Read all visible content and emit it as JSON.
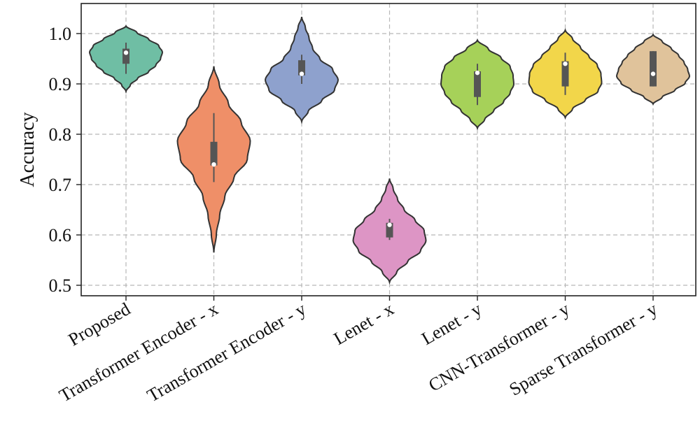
{
  "chart_data": {
    "type": "violin",
    "ylabel": "Accuracy",
    "xlabel": "",
    "ylim": [
      0.48,
      1.06
    ],
    "yticks": [
      "0.5",
      "0.6",
      "0.7",
      "0.8",
      "0.9",
      "1.0"
    ],
    "grid": true,
    "legend": "none",
    "categories": [
      {
        "name": "Proposed",
        "color": "#6fbea4",
        "range": [
          0.885,
          1.015
        ],
        "profile": [
          0.0,
          0.12,
          0.32,
          0.62,
          0.82,
          0.95,
          1.0,
          0.9,
          0.62,
          0.3,
          0.0
        ],
        "q1": 0.94,
        "median": 0.962,
        "q3": 0.97,
        "whisker": [
          0.92,
          0.982
        ]
      },
      {
        "name": "Transformer Encoder - x",
        "color": "#ef8f68",
        "range": [
          0.565,
          0.935
        ],
        "profile": [
          0.0,
          0.07,
          0.16,
          0.3,
          0.55,
          0.92,
          1.0,
          0.75,
          0.4,
          0.15,
          0.0
        ],
        "q1": 0.738,
        "median": 0.74,
        "q3": 0.785,
        "whisker": [
          0.705,
          0.842
        ]
      },
      {
        "name": "Transformer Encoder - y",
        "color": "#8ea1cd",
        "range": [
          0.825,
          1.033
        ],
        "profile": [
          0.0,
          0.18,
          0.55,
          0.9,
          1.0,
          0.85,
          0.5,
          0.3,
          0.2,
          0.1,
          0.0
        ],
        "q1": 0.917,
        "median": 0.92,
        "q3": 0.947,
        "whisker": [
          0.9,
          0.958
        ]
      },
      {
        "name": "Lenet - x",
        "color": "#dd95c5",
        "range": [
          0.506,
          0.712
        ],
        "profile": [
          0.0,
          0.2,
          0.5,
          0.85,
          1.0,
          0.95,
          0.7,
          0.4,
          0.22,
          0.1,
          0.0
        ],
        "q1": 0.595,
        "median": 0.62,
        "q3": 0.624,
        "whisker": [
          0.59,
          0.632
        ]
      },
      {
        "name": "Lenet - y",
        "color": "#a6d159",
        "range": [
          0.812,
          0.987
        ],
        "profile": [
          0.0,
          0.2,
          0.45,
          0.72,
          0.9,
          1.0,
          0.98,
          0.9,
          0.65,
          0.3,
          0.0
        ],
        "q1": 0.874,
        "median": 0.922,
        "q3": 0.925,
        "whisker": [
          0.858,
          0.94
        ]
      },
      {
        "name": "CNN-Transformer - y",
        "color": "#f2d64a",
        "range": [
          0.833,
          1.007
        ],
        "profile": [
          0.0,
          0.2,
          0.55,
          0.9,
          1.0,
          0.98,
          0.88,
          0.65,
          0.42,
          0.2,
          0.0
        ],
        "q1": 0.895,
        "median": 0.94,
        "q3": 0.945,
        "whisker": [
          0.878,
          0.962
        ]
      },
      {
        "name": "Sparse Transformer - y",
        "color": "#e0c39b",
        "range": [
          0.86,
          0.998
        ],
        "profile": [
          0.0,
          0.25,
          0.6,
          0.88,
          1.0,
          0.95,
          0.85,
          0.7,
          0.5,
          0.25,
          0.0
        ],
        "q1": 0.895,
        "median": 0.92,
        "q3": 0.965,
        "whisker": [
          0.895,
          0.965
        ]
      }
    ]
  }
}
